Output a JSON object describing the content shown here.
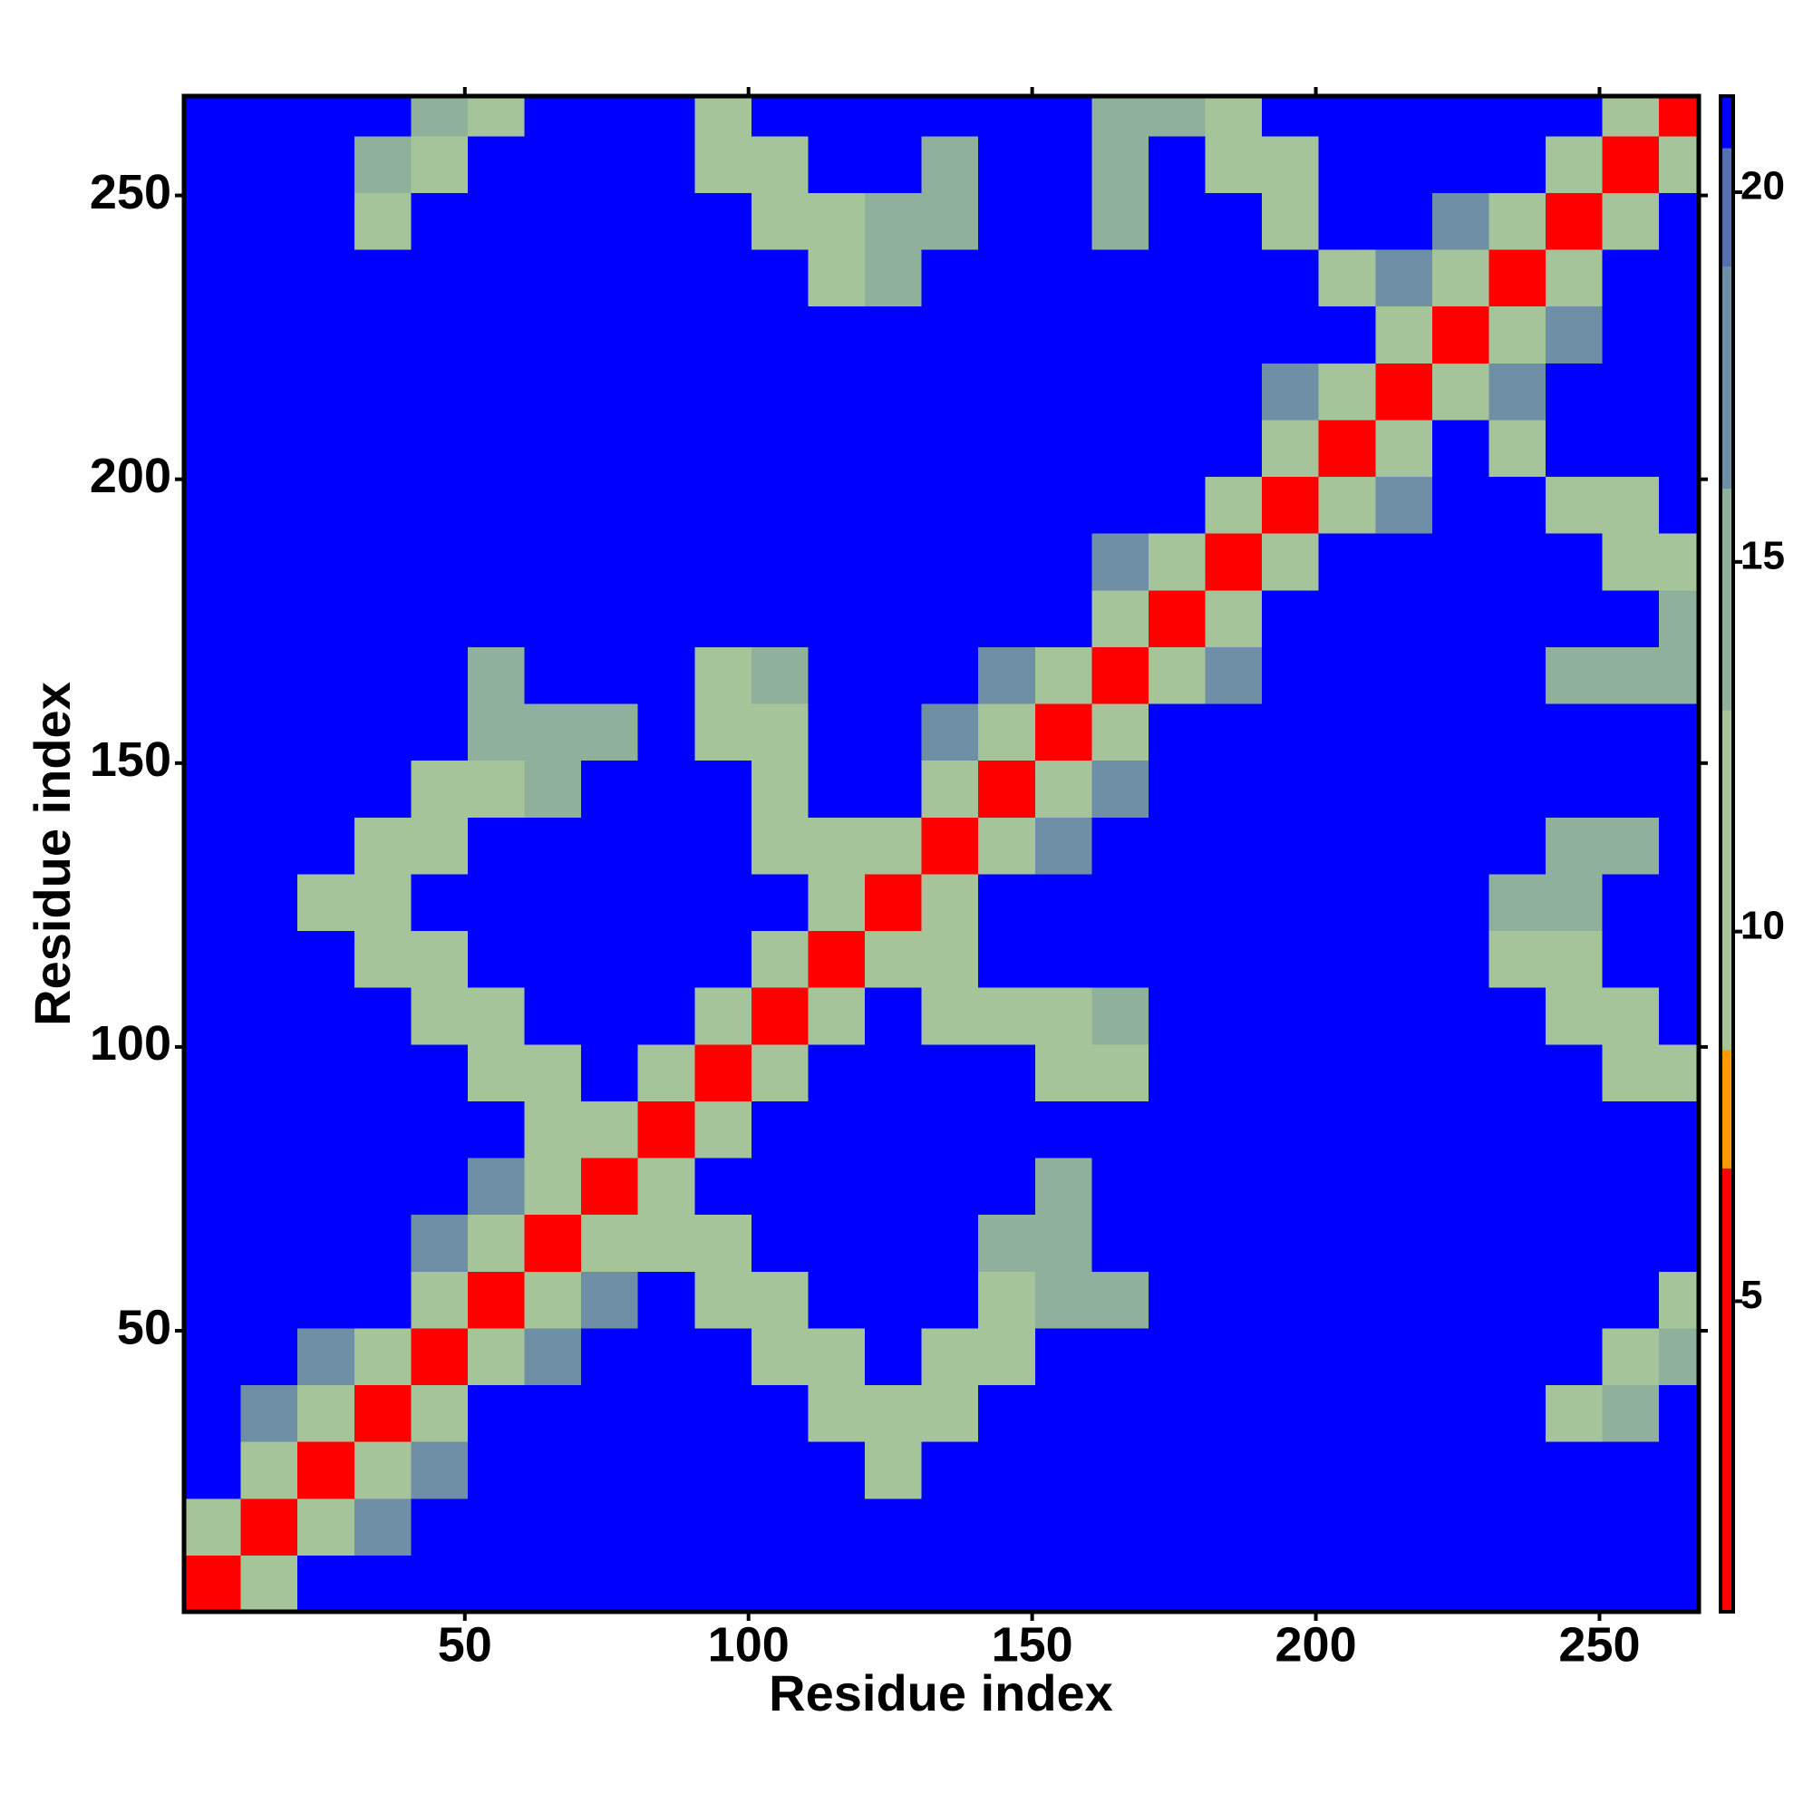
{
  "chart_data": {
    "type": "heatmap",
    "xlabel": "Residue index",
    "ylabel": "Residue index",
    "xlim": [
      0.5,
      267.5
    ],
    "ylim": [
      0.5,
      267.5
    ],
    "xticks": [
      50,
      100,
      150,
      200,
      250
    ],
    "yticks": [
      50,
      100,
      150,
      200,
      250
    ],
    "xbins": [
      0.5,
      10.5,
      20.5,
      30.5,
      40.5,
      50.5,
      60.5,
      70.5,
      80.5,
      90.5,
      100.5,
      110.5,
      120.5,
      130.5,
      140.5,
      150.5,
      160.5,
      170.5,
      180.5,
      190.5,
      200.5,
      210.5,
      220.5,
      230.5,
      240.5,
      250.5,
      260.5,
      267.5
    ],
    "ybins": [
      0.5,
      10.5,
      20.5,
      30.5,
      40.5,
      50.5,
      60.5,
      70.5,
      80.5,
      90.5,
      100.5,
      110.5,
      120.5,
      130.5,
      140.5,
      150.5,
      160.5,
      170.5,
      180.5,
      190.5,
      200.5,
      210.5,
      220.5,
      230.5,
      240.5,
      250.5,
      260.5,
      267.5
    ],
    "values": [
      [
        4,
        13,
        21,
        21,
        21,
        21,
        21,
        21,
        21,
        21,
        21,
        21,
        21,
        21,
        21,
        21,
        21,
        21,
        21,
        21,
        21,
        21,
        21,
        21,
        21,
        21,
        21
      ],
      [
        13,
        4,
        13,
        17,
        21,
        21,
        21,
        21,
        21,
        21,
        21,
        21,
        21,
        21,
        21,
        21,
        21,
        21,
        21,
        21,
        21,
        21,
        21,
        21,
        21,
        21,
        21
      ],
      [
        21,
        13,
        4,
        13,
        17,
        21,
        21,
        21,
        21,
        21,
        21,
        21,
        12,
        21,
        21,
        21,
        21,
        21,
        21,
        21,
        21,
        21,
        21,
        21,
        21,
        21,
        21
      ],
      [
        21,
        17,
        13,
        4,
        13,
        21,
        21,
        21,
        21,
        21,
        21,
        12,
        12,
        12,
        21,
        21,
        21,
        21,
        21,
        21,
        21,
        21,
        21,
        21,
        12,
        15,
        21
      ],
      [
        21,
        21,
        17,
        13,
        4,
        13,
        17,
        21,
        21,
        21,
        12,
        12,
        21,
        12,
        12,
        21,
        21,
        21,
        21,
        21,
        21,
        21,
        21,
        21,
        21,
        12,
        15
      ],
      [
        21,
        21,
        21,
        21,
        13,
        4,
        13,
        17,
        21,
        12,
        12,
        21,
        21,
        21,
        12,
        15,
        15,
        21,
        21,
        21,
        21,
        21,
        21,
        21,
        21,
        21,
        12
      ],
      [
        21,
        21,
        21,
        21,
        17,
        13,
        4,
        13,
        12,
        12,
        21,
        21,
        21,
        21,
        15,
        15,
        21,
        21,
        21,
        21,
        21,
        21,
        21,
        21,
        21,
        21,
        21
      ],
      [
        21,
        21,
        21,
        21,
        21,
        17,
        13,
        4,
        13,
        21,
        21,
        21,
        21,
        21,
        21,
        15,
        21,
        21,
        21,
        21,
        21,
        21,
        21,
        21,
        21,
        21,
        21
      ],
      [
        21,
        21,
        21,
        21,
        21,
        21,
        12,
        13,
        4,
        13,
        21,
        21,
        21,
        21,
        21,
        21,
        21,
        21,
        21,
        21,
        21,
        21,
        21,
        21,
        21,
        21,
        21
      ],
      [
        21,
        21,
        21,
        21,
        21,
        12,
        12,
        21,
        13,
        4,
        13,
        21,
        21,
        21,
        21,
        12,
        12,
        21,
        21,
        21,
        21,
        21,
        21,
        21,
        21,
        12,
        12
      ],
      [
        21,
        21,
        21,
        21,
        12,
        12,
        21,
        21,
        21,
        13,
        4,
        13,
        21,
        12,
        12,
        12,
        15,
        21,
        21,
        21,
        21,
        21,
        21,
        21,
        12,
        12,
        21
      ],
      [
        21,
        21,
        21,
        12,
        12,
        21,
        21,
        21,
        21,
        21,
        13,
        4,
        13,
        12,
        21,
        21,
        21,
        21,
        21,
        21,
        21,
        21,
        21,
        12,
        12,
        21,
        21
      ],
      [
        21,
        21,
        12,
        12,
        21,
        21,
        21,
        21,
        21,
        21,
        21,
        13,
        4,
        13,
        21,
        21,
        21,
        21,
        21,
        21,
        21,
        21,
        21,
        15,
        15,
        21,
        21
      ],
      [
        21,
        21,
        21,
        12,
        12,
        21,
        21,
        21,
        21,
        21,
        12,
        12,
        13,
        4,
        13,
        17,
        21,
        21,
        21,
        21,
        21,
        21,
        21,
        21,
        15,
        15,
        21
      ],
      [
        21,
        21,
        21,
        21,
        12,
        12,
        15,
        21,
        21,
        21,
        12,
        21,
        21,
        13,
        4,
        13,
        17,
        21,
        21,
        21,
        21,
        21,
        21,
        21,
        21,
        21,
        21
      ],
      [
        21,
        21,
        21,
        21,
        21,
        15,
        15,
        15,
        21,
        12,
        12,
        21,
        21,
        17,
        13,
        4,
        13,
        21,
        21,
        21,
        21,
        21,
        21,
        21,
        21,
        21,
        21
      ],
      [
        21,
        21,
        21,
        21,
        21,
        15,
        21,
        21,
        21,
        12,
        15,
        21,
        21,
        21,
        17,
        13,
        4,
        13,
        17,
        21,
        21,
        21,
        21,
        21,
        15,
        15,
        15
      ],
      [
        21,
        21,
        21,
        21,
        21,
        21,
        21,
        21,
        21,
        21,
        21,
        21,
        21,
        21,
        21,
        21,
        13,
        4,
        13,
        21,
        21,
        21,
        21,
        21,
        21,
        21,
        15
      ],
      [
        21,
        21,
        21,
        21,
        21,
        21,
        21,
        21,
        21,
        21,
        21,
        21,
        21,
        21,
        21,
        21,
        17,
        13,
        4,
        13,
        21,
        21,
        21,
        21,
        21,
        12,
        12
      ],
      [
        21,
        21,
        21,
        21,
        21,
        21,
        21,
        21,
        21,
        21,
        21,
        21,
        21,
        21,
        21,
        21,
        21,
        21,
        13,
        4,
        13,
        17,
        21,
        21,
        12,
        12,
        21
      ],
      [
        21,
        21,
        21,
        21,
        21,
        21,
        21,
        21,
        21,
        21,
        21,
        21,
        21,
        21,
        21,
        21,
        21,
        21,
        21,
        13,
        4,
        13,
        21,
        12,
        21,
        21,
        21
      ],
      [
        21,
        21,
        21,
        21,
        21,
        21,
        21,
        21,
        21,
        21,
        21,
        21,
        21,
        21,
        21,
        21,
        21,
        21,
        21,
        17,
        13,
        4,
        13,
        17,
        21,
        21,
        21
      ],
      [
        21,
        21,
        21,
        21,
        21,
        21,
        21,
        21,
        21,
        21,
        21,
        21,
        21,
        21,
        21,
        21,
        21,
        21,
        21,
        21,
        21,
        13,
        4,
        13,
        17,
        21,
        21
      ],
      [
        21,
        21,
        21,
        21,
        21,
        21,
        21,
        21,
        21,
        21,
        21,
        12,
        15,
        21,
        21,
        21,
        21,
        21,
        21,
        21,
        12,
        17,
        13,
        4,
        13,
        21,
        21
      ],
      [
        21,
        21,
        21,
        12,
        21,
        21,
        21,
        21,
        21,
        21,
        12,
        12,
        15,
        15,
        21,
        21,
        15,
        21,
        21,
        12,
        21,
        21,
        17,
        13,
        4,
        13,
        21
      ],
      [
        21,
        21,
        21,
        15,
        12,
        21,
        21,
        21,
        21,
        12,
        12,
        21,
        21,
        15,
        21,
        21,
        15,
        21,
        12,
        12,
        21,
        21,
        21,
        21,
        13,
        4,
        13
      ],
      [
        21,
        21,
        21,
        21,
        15,
        12,
        21,
        21,
        21,
        12,
        21,
        21,
        21,
        21,
        21,
        21,
        15,
        15,
        12,
        21,
        21,
        21,
        21,
        21,
        21,
        13,
        4
      ]
    ],
    "colorbar_lim": [
      0.8,
      21.3
    ],
    "colorbar_ticks": [
      5,
      10,
      15,
      20
    ],
    "colorscale": [
      {
        "value": 6.8,
        "color": "#ff0000"
      },
      {
        "value": 8.4,
        "color": "#ff9900"
      },
      {
        "value": 13,
        "color": "#a6c49a"
      },
      {
        "value": 16,
        "color": "#8fb09a"
      },
      {
        "value": 19,
        "color": "#6f8fa6"
      },
      {
        "value": 20.6,
        "color": "#5570b0"
      },
      {
        "value": 21.3,
        "color": "#0000ff"
      }
    ]
  }
}
